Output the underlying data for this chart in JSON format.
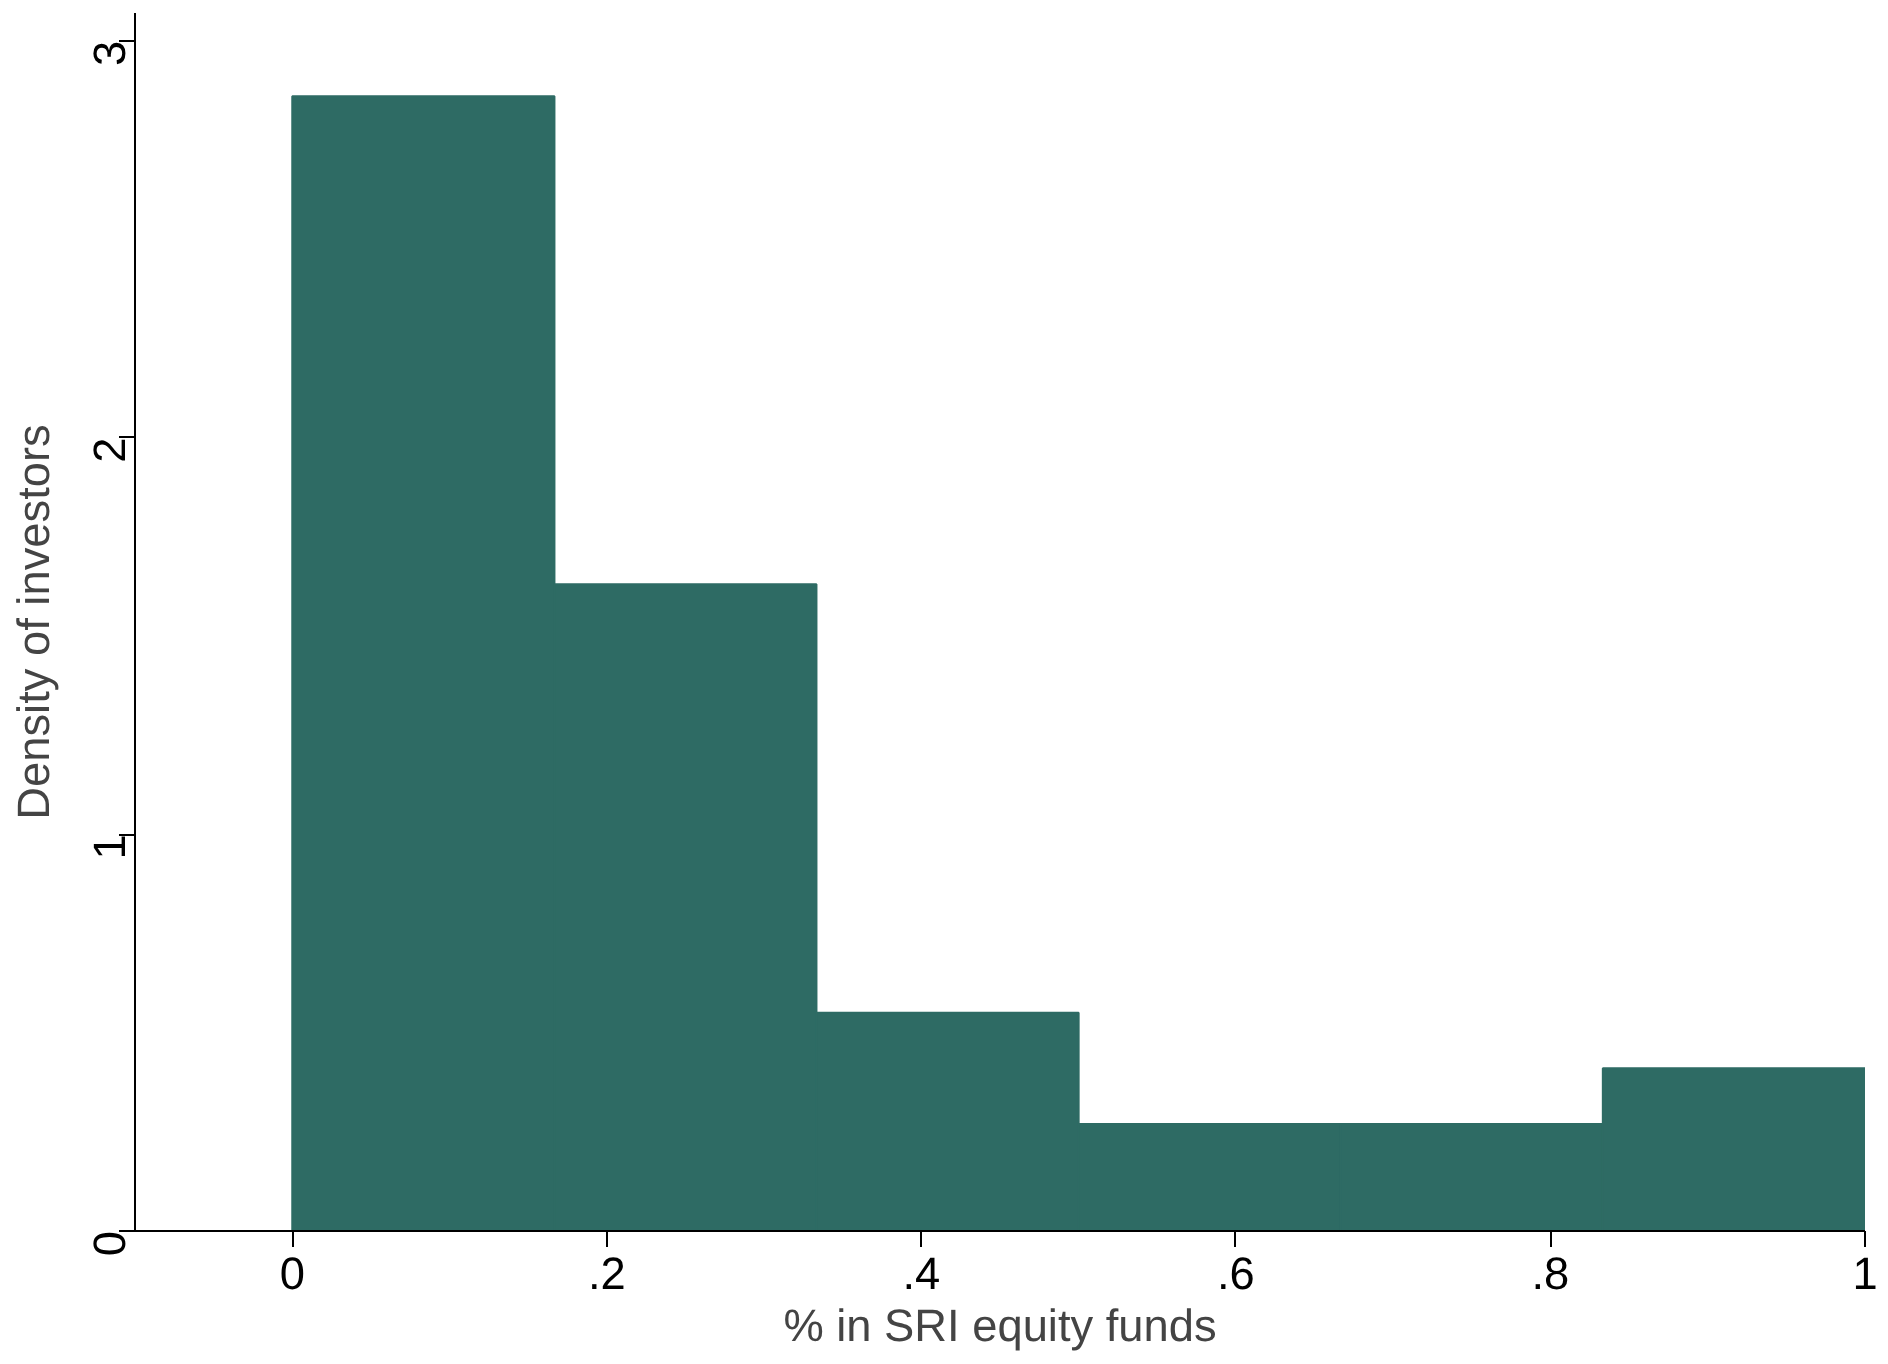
{
  "chart_data": {
    "type": "histogram",
    "xlabel": "% in SRI equity funds",
    "ylabel": "Density of investors",
    "bins": [
      0,
      0.1667,
      0.3333,
      0.5,
      0.6667,
      0.8333,
      1
    ],
    "values": [
      2.86,
      1.63,
      0.55,
      0.27,
      0.27,
      0.41
    ],
    "color": "#2e6b64",
    "xlim": [
      -0.1,
      1
    ],
    "ylim": [
      0,
      3.07
    ],
    "xticks": [
      {
        "value": 0,
        "label": "0"
      },
      {
        "value": 0.2,
        "label": ".2"
      },
      {
        "value": 0.4,
        "label": ".4"
      },
      {
        "value": 0.6,
        "label": ".6"
      },
      {
        "value": 0.8,
        "label": ".8"
      },
      {
        "value": 1,
        "label": "1"
      }
    ],
    "yticks": [
      0,
      1,
      2,
      3
    ],
    "grid": false
  }
}
